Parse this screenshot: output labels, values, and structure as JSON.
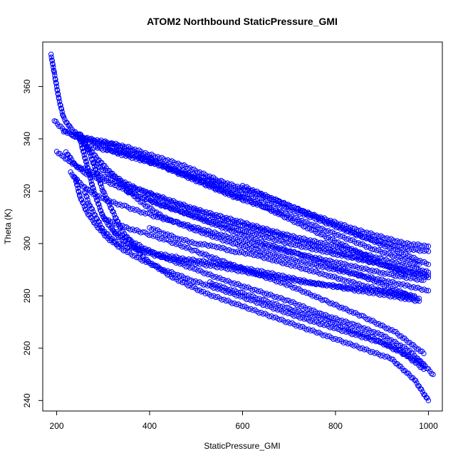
{
  "chart_data": {
    "type": "scatter",
    "title": "ATOM2 Northbound StaticPressure_GMI",
    "xlabel": "StaticPressure_GMI",
    "ylabel": "Theta (K)",
    "xlim": [
      170,
      1030
    ],
    "ylim": [
      236,
      377
    ],
    "xticks": [
      200,
      400,
      600,
      800,
      1000
    ],
    "yticks": [
      240,
      260,
      280,
      300,
      320,
      340,
      360
    ],
    "grid": false,
    "marker": "open-circle",
    "color": "#0000ff",
    "series": [
      {
        "x": [
          188,
          195,
          205,
          215,
          230,
          250,
          280,
          320,
          380,
          450,
          550,
          650,
          750,
          850,
          950,
          1000
        ],
        "y": [
          372,
          365,
          355,
          348,
          344,
          341,
          339,
          338,
          334,
          329,
          323,
          316,
          310,
          303,
          298,
          297
        ]
      },
      {
        "x": [
          195,
          205,
          220,
          240,
          270,
          300,
          350,
          400,
          470,
          550,
          650,
          750,
          850,
          950,
          1000
        ],
        "y": [
          347,
          345,
          343,
          341,
          340,
          339,
          337,
          334,
          330,
          324,
          318,
          311,
          305,
          300,
          299
        ]
      },
      {
        "x": [
          200,
          215,
          230,
          250,
          280,
          320,
          370,
          420,
          500,
          600,
          700,
          800,
          900,
          1000
        ],
        "y": [
          335,
          333,
          331,
          329,
          327,
          324,
          321,
          318,
          313,
          308,
          303,
          299,
          294,
          289
        ]
      },
      {
        "x": [
          215,
          240,
          270,
          310,
          360,
          420,
          500,
          580,
          680,
          780,
          880,
          980
        ],
        "y": [
          343,
          341,
          339,
          337,
          334,
          330,
          324,
          318,
          312,
          305,
          298,
          292
        ]
      },
      {
        "x": [
          220,
          240,
          260,
          290,
          330,
          380,
          440,
          520,
          600,
          700,
          800,
          900,
          1000
        ],
        "y": [
          335,
          330,
          327,
          325,
          322,
          318,
          314,
          309,
          305,
          300,
          296,
          292,
          287
        ]
      },
      {
        "x": [
          230,
          250,
          270,
          300,
          350,
          400,
          460,
          540,
          620,
          720,
          820,
          920,
          990
        ],
        "y": [
          327,
          323,
          320,
          317,
          314,
          311,
          308,
          304,
          300,
          296,
          292,
          288,
          286
        ]
      },
      {
        "x": [
          240,
          260,
          280,
          300,
          340,
          380,
          430,
          500,
          580,
          660,
          750,
          850,
          950,
          1000
        ],
        "y": [
          342,
          338,
          334,
          330,
          323,
          316,
          310,
          305,
          300,
          296,
          292,
          288,
          284,
          282
        ]
      },
      {
        "x": [
          250,
          265,
          280,
          300,
          330,
          370,
          420,
          480,
          550,
          640,
          740,
          840,
          940,
          970
        ],
        "y": [
          340,
          330,
          320,
          310,
          303,
          298,
          295,
          293,
          291,
          288,
          285,
          283,
          281,
          280
        ]
      },
      {
        "x": [
          260,
          270,
          285,
          300,
          330,
          370,
          420,
          480,
          560,
          650,
          750,
          850,
          950,
          980
        ],
        "y": [
          320,
          315,
          310,
          305,
          300,
          298,
          296,
          294,
          292,
          289,
          285,
          282,
          279,
          278
        ]
      },
      {
        "x": [
          240,
          250,
          265,
          285,
          310,
          340,
          380,
          430,
          490,
          560,
          640,
          720,
          810,
          900,
          990
        ],
        "y": [
          325,
          318,
          312,
          307,
          302,
          298,
          294,
          290,
          286,
          282,
          277,
          272,
          267,
          262,
          254
        ]
      },
      {
        "x": [
          300,
          320,
          350,
          390,
          440,
          500,
          560,
          620,
          700,
          780,
          860,
          930,
          990
        ],
        "y": [
          310,
          308,
          306,
          304,
          301,
          297,
          293,
          289,
          284,
          278,
          272,
          266,
          258
        ]
      },
      {
        "x": [
          250,
          270,
          300,
          340,
          390,
          450,
          520,
          600,
          680,
          760,
          840,
          920,
          970,
          1000
        ],
        "y": [
          342,
          335,
          320,
          305,
          294,
          287,
          281,
          276,
          271,
          266,
          261,
          256,
          248,
          240
        ]
      },
      {
        "x": [
          320,
          350,
          390,
          440,
          500,
          560,
          630,
          700,
          770,
          840,
          900,
          960,
          1010
        ],
        "y": [
          305,
          302,
          298,
          294,
          290,
          286,
          282,
          278,
          273,
          269,
          265,
          259,
          250
        ]
      },
      {
        "x": [
          310,
          340,
          380,
          420,
          470,
          530,
          600,
          670,
          740,
          810,
          880,
          950
        ],
        "y": [
          336,
          334,
          332,
          330,
          327,
          323,
          318,
          312,
          306,
          300,
          294,
          288
        ]
      },
      {
        "x": [
          350,
          380,
          420,
          470,
          530,
          590,
          650,
          720,
          800,
          880,
          960
        ],
        "y": [
          320,
          318,
          315,
          312,
          308,
          304,
          300,
          296,
          291,
          286,
          280
        ]
      },
      {
        "x": [
          530,
          560,
          600,
          650,
          700,
          760,
          820,
          880,
          940,
          990
        ],
        "y": [
          285,
          283,
          281,
          278,
          275,
          272,
          268,
          264,
          259,
          252
        ]
      },
      {
        "x": [
          280,
          300,
          330,
          360,
          400,
          440,
          490,
          540,
          600,
          660,
          720,
          780,
          840,
          900,
          960,
          1000
        ],
        "y": [
          331,
          328,
          325,
          322,
          319,
          316,
          313,
          310,
          307,
          304,
          301,
          298,
          295,
          292,
          289,
          288
        ]
      },
      {
        "x": [
          600,
          640,
          680,
          720,
          760,
          800,
          840,
          880,
          920,
          960,
          1000
        ],
        "y": [
          322,
          319,
          316,
          313,
          310,
          307,
          304,
          301,
          298,
          295,
          292
        ]
      },
      {
        "x": [
          260,
          280,
          300,
          330,
          360,
          400,
          440,
          480,
          520,
          560,
          600
        ],
        "y": [
          337,
          337,
          336,
          335,
          334,
          332,
          329,
          326,
          323,
          320,
          317
        ]
      },
      {
        "x": [
          400,
          430,
          460,
          500,
          540,
          580,
          620,
          660,
          700,
          740,
          780,
          820,
          860,
          900,
          940,
          980
        ],
        "y": [
          306,
          304,
          302,
          300,
          299,
          297,
          296,
          294,
          292,
          290,
          288,
          286,
          284,
          282,
          280,
          279
        ]
      }
    ]
  }
}
